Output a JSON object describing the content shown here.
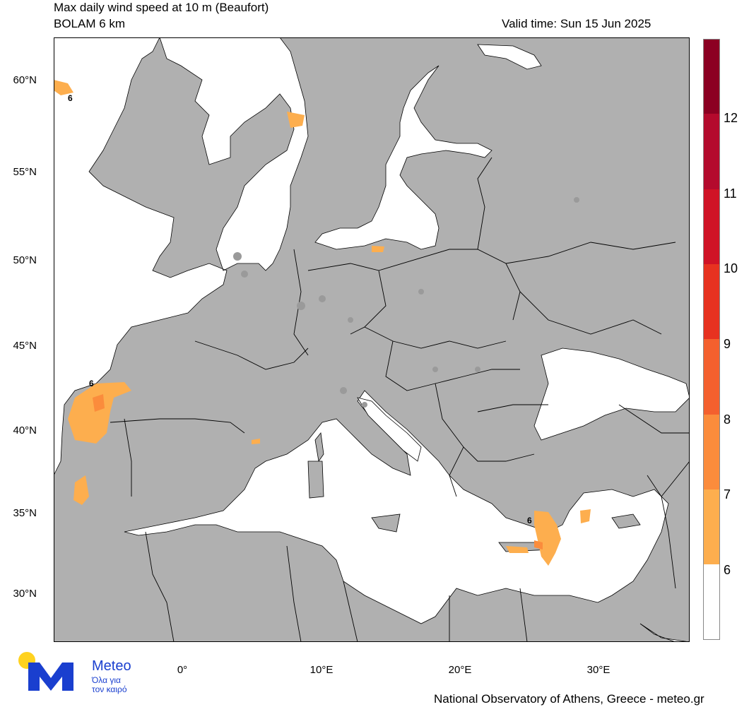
{
  "header": {
    "title": "Max daily wind speed at 10 m (Beaufort)",
    "model": "BOLAM 6 km",
    "valid_time": "Valid time: Sun 15 Jun 2025"
  },
  "colorbar": {
    "labels": [
      "6",
      "7",
      "8",
      "9",
      "10",
      "11",
      "12"
    ],
    "colors": [
      "#ffffff",
      "#fdae4e",
      "#fb8c3c",
      "#f4602e",
      "#e73220",
      "#d01326",
      "#b40a2d",
      "#8c0022"
    ]
  },
  "axes": {
    "lat_labels": [
      "60°N",
      "55°N",
      "50°N",
      "45°N",
      "40°N",
      "35°N",
      "30°N"
    ],
    "lon_labels": [
      "0°",
      "10°E",
      "20°E",
      "30°E"
    ]
  },
  "map_labels": {
    "contour_label": "6"
  },
  "colors": {
    "land": "#b0b0b0",
    "sea": "#ffffff",
    "wind_6_7": "#fdae4e",
    "wind_7_8": "#fb8c3c",
    "urban": "#9a9a9a"
  },
  "logo": {
    "name": "Meteo",
    "tagline_1": "Όλα για",
    "tagline_2": "τον καιρό",
    "blue": "#1a3fcf",
    "yellow": "#ffd21f"
  },
  "footer": {
    "credit": "National Observatory of Athens, Greece - meteo.gr"
  }
}
